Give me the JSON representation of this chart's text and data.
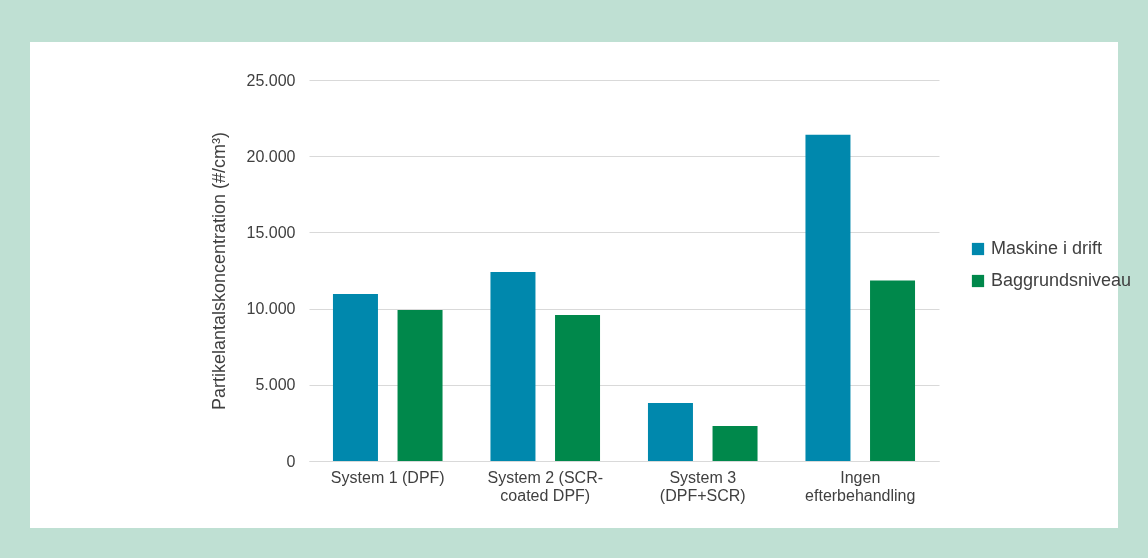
{
  "chart_data": {
    "type": "bar",
    "ylabel": "Partikelantalskoncentration (#/cm³)",
    "categories": [
      "System 1 (DPF)",
      "System 2 (SCR-coated DPF)",
      "System 3 (DPF+SCR)",
      "Ingen efterbehandling"
    ],
    "series": [
      {
        "name": "Maskine i drift",
        "color": "#0088ad",
        "values": [
          10950,
          12400,
          3800,
          21400
        ]
      },
      {
        "name": "Baggrundsniveau",
        "color": "#00884b",
        "values": [
          9900,
          9580,
          2300,
          11850
        ]
      }
    ],
    "ylim": [
      0,
      25000
    ],
    "yticks": [
      0,
      {
        "value": 5000,
        "label": "5.000"
      },
      {
        "value": 10000,
        "label": "10.000"
      },
      {
        "value": 15000,
        "label": "15.000"
      },
      {
        "value": 20000,
        "label": "20.000"
      },
      {
        "value": 25000,
        "label": "25.000"
      }
    ],
    "grid": "y",
    "legend": "right"
  }
}
